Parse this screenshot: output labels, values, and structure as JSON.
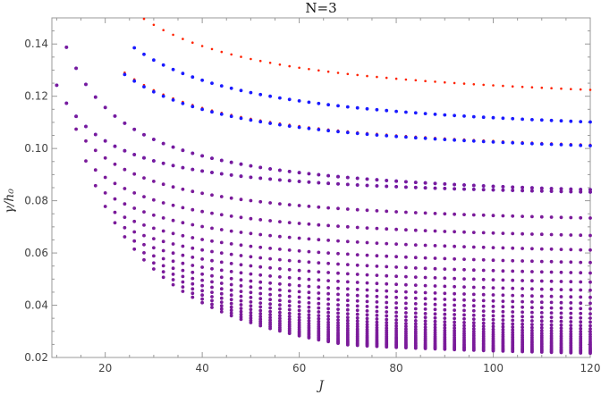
{
  "chart_data": {
    "type": "scatter",
    "title": "N=3",
    "xlabel": "J",
    "ylabel": "γ/h₀",
    "xlim": [
      9,
      120
    ],
    "ylim": [
      0.02,
      0.15
    ],
    "xticks": [
      20,
      40,
      60,
      80,
      100,
      120
    ],
    "yticks": [
      0.02,
      0.04,
      0.06,
      0.08,
      0.1,
      0.12,
      0.14
    ],
    "xtick_labels": [
      "20",
      "40",
      "60",
      "80",
      "100",
      "120"
    ],
    "ytick_labels": [
      "0.02",
      "0.04",
      "0.06",
      "0.08",
      "0.10",
      "0.12",
      "0.14"
    ],
    "grid": false,
    "series": [
      {
        "color": "#ff2200",
        "marker": "small-dot",
        "families": [
          {
            "a": 1.05,
            "b": 0.1138,
            "c": 0.2,
            "x_start": 26,
            "x_step": 2
          },
          {
            "a": 0.88,
            "b": 0.0942,
            "c": 0.2,
            "x_start": 24,
            "x_step": 2
          }
        ]
      },
      {
        "color": "#1a1aff",
        "marker": "dot",
        "families": [
          {
            "a": 1.0,
            "b": 0.1019,
            "c": 0.2,
            "x_start": 26,
            "x_step": 2
          },
          {
            "a": 0.87,
            "b": 0.0939,
            "c": 0.2,
            "x_start": 24,
            "x_step": 2
          },
          {
            "a": 0.812,
            "b": 0.0775,
            "c": 0.2,
            "x_start": 12,
            "x_step": 2
          },
          {
            "a": 0.5,
            "b": 0.0792,
            "c": 0.2,
            "x_start": 10,
            "x_step": 2
          }
        ]
      },
      {
        "color": "#7a1a9a",
        "marker": "dot",
        "families": [
          {
            "a": 0.812,
            "b": 0.0775,
            "c": 0.2,
            "x_start": 12,
            "x_step": 2
          },
          {
            "a": 0.5,
            "b": 0.0792,
            "c": 0.2,
            "x_start": 10,
            "x_step": 2
          },
          {
            "a": 0.59,
            "b": 0.0685,
            "c": 0.2,
            "x_start": 14,
            "x_step": 2
          },
          {
            "a": 0.57,
            "b": 0.062,
            "c": 0.2,
            "x_start": 16,
            "x_step": 2
          },
          {
            "a": 0.56,
            "b": 0.0565,
            "c": 0.2,
            "x_start": 18,
            "x_step": 2
          },
          {
            "a": 0.55,
            "b": 0.0518,
            "c": 0.2,
            "x_start": 20,
            "x_step": 2
          },
          {
            "a": 0.55,
            "b": 0.0478,
            "c": 0.2,
            "x_start": 22,
            "x_step": 2
          },
          {
            "a": 0.55,
            "b": 0.0443,
            "c": 0.2,
            "x_start": 24,
            "x_step": 2
          },
          {
            "a": 0.55,
            "b": 0.0412,
            "c": 0.2,
            "x_start": 26,
            "x_step": 2
          },
          {
            "a": 0.55,
            "b": 0.0385,
            "c": 0.2,
            "x_start": 28,
            "x_step": 2
          },
          {
            "a": 0.55,
            "b": 0.0362,
            "c": 0.2,
            "x_start": 30,
            "x_step": 2
          },
          {
            "a": 0.55,
            "b": 0.0341,
            "c": 0.2,
            "x_start": 32,
            "x_step": 2
          },
          {
            "a": 0.55,
            "b": 0.0322,
            "c": 0.2,
            "x_start": 34,
            "x_step": 2
          },
          {
            "a": 0.55,
            "b": 0.0305,
            "c": 0.2,
            "x_start": 36,
            "x_step": 2
          },
          {
            "a": 0.55,
            "b": 0.029,
            "c": 0.2,
            "x_start": 38,
            "x_step": 2
          },
          {
            "a": 0.55,
            "b": 0.0276,
            "c": 0.2,
            "x_start": 40,
            "x_step": 2
          },
          {
            "a": 0.55,
            "b": 0.0264,
            "c": 0.2,
            "x_start": 42,
            "x_step": 2
          },
          {
            "a": 0.55,
            "b": 0.0253,
            "c": 0.2,
            "x_start": 44,
            "x_step": 2
          },
          {
            "a": 0.55,
            "b": 0.0243,
            "c": 0.2,
            "x_start": 46,
            "x_step": 2
          },
          {
            "a": 0.55,
            "b": 0.0234,
            "c": 0.2,
            "x_start": 48,
            "x_step": 2
          },
          {
            "a": 0.55,
            "b": 0.0226,
            "c": 0.2,
            "x_start": 50,
            "x_step": 2
          },
          {
            "a": 0.55,
            "b": 0.0218,
            "c": 0.2,
            "x_start": 52,
            "x_step": 2
          },
          {
            "a": 0.55,
            "b": 0.0211,
            "c": 0.2,
            "x_start": 54,
            "x_step": 2
          },
          {
            "a": 0.55,
            "b": 0.0205,
            "c": 0.2,
            "x_start": 56,
            "x_step": 2
          },
          {
            "a": 0.55,
            "b": 0.0199,
            "c": 0.2,
            "x_start": 58,
            "x_step": 2
          },
          {
            "a": 0.55,
            "b": 0.0193,
            "c": 0.2,
            "x_start": 60,
            "x_step": 2
          },
          {
            "a": 0.55,
            "b": 0.0188,
            "c": 0.2,
            "x_start": 62,
            "x_step": 2
          },
          {
            "a": 0.55,
            "b": 0.0183,
            "c": 0.2,
            "x_start": 64,
            "x_step": 2
          },
          {
            "a": 0.55,
            "b": 0.0179,
            "c": 0.2,
            "x_start": 66,
            "x_step": 2
          },
          {
            "a": 0.55,
            "b": 0.0175,
            "c": 0.2,
            "x_start": 68,
            "x_step": 2
          },
          {
            "a": 0.55,
            "b": 0.0171,
            "c": 0.2,
            "x_start": 70,
            "x_step": 2
          }
        ]
      }
    ],
    "axis_color": "#999999"
  }
}
